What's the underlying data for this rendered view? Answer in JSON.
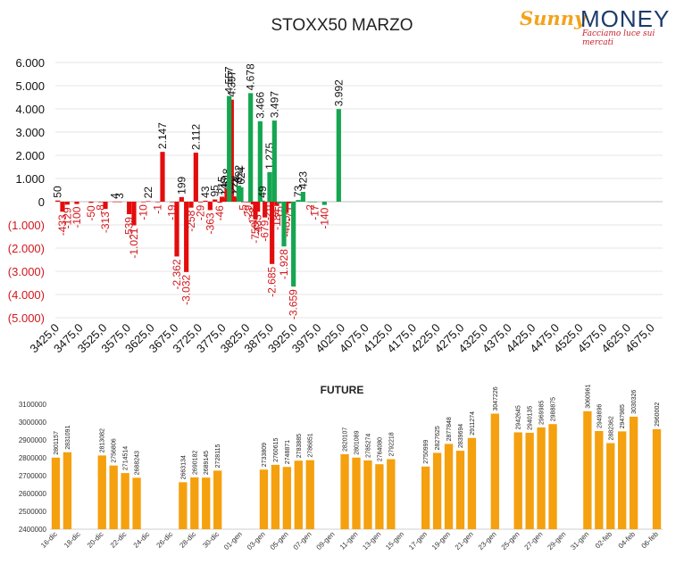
{
  "chart_data": [
    {
      "type": "bar",
      "title": "STOXX50 MARZO",
      "ylim": [
        -5000,
        6000
      ],
      "y_ticks": [
        6000,
        5000,
        4000,
        3000,
        2000,
        1000,
        0,
        -1000,
        -2000,
        -3000,
        -4000,
        -5000
      ],
      "y_tick_labels": [
        "6.000",
        "5.000",
        "4.000",
        "3.000",
        "2.000",
        "1.000",
        "0",
        "(1.000)",
        "(2.000)",
        "(3.000)",
        "(4.000)",
        "(5.000)"
      ],
      "x_tick_labels": [
        "3425,0",
        "3475,0",
        "3525,0",
        "3575,0",
        "3625,0",
        "3675,0",
        "3725,0",
        "3775,0",
        "3825,0",
        "3875,0",
        "3925,0",
        "3975,0",
        "4025,0",
        "4075,0",
        "4125,0",
        "4175,0",
        "4225,0",
        "4275,0",
        "4325,0",
        "4375,0",
        "4425,0",
        "4475,0",
        "4525,0",
        "4575,0",
        "4625,0",
        "4675,0"
      ],
      "x_start": 3425,
      "x_step": 50,
      "x_max": 4700,
      "grid": true,
      "series": [
        {
          "color": "#e30d0d",
          "points": [
            {
              "x": 3430,
              "y": 50,
              "label": "50"
            },
            {
              "x": 3440,
              "y": -433,
              "label": "-433"
            },
            {
              "x": 3450,
              "y": -129,
              "label": "-129"
            },
            {
              "x": 3470,
              "y": -100,
              "label": "-100"
            },
            {
              "x": 3500,
              "y": -50,
              "label": "-50"
            },
            {
              "x": 3520,
              "y": -8,
              "label": "-8"
            },
            {
              "x": 3530,
              "y": -313,
              "label": "-313"
            },
            {
              "x": 3550,
              "y": 4,
              "label": "4"
            },
            {
              "x": 3560,
              "y": 3,
              "label": "3"
            },
            {
              "x": 3580,
              "y": -539,
              "label": "-539"
            },
            {
              "x": 3590,
              "y": -1021,
              "label": "-1.021"
            },
            {
              "x": 3610,
              "y": -10,
              "label": "-10"
            },
            {
              "x": 3620,
              "y": 22,
              "label": "22"
            },
            {
              "x": 3640,
              "y": -1,
              "label": "-1"
            },
            {
              "x": 3650,
              "y": 2147,
              "label": "2.147"
            },
            {
              "x": 3670,
              "y": -19,
              "label": "-19"
            },
            {
              "x": 3680,
              "y": -2362,
              "label": "-2.362"
            },
            {
              "x": 3690,
              "y": 199,
              "label": "199"
            },
            {
              "x": 3700,
              "y": -3032,
              "label": "-3.032"
            },
            {
              "x": 3710,
              "y": -258,
              "label": "-258"
            },
            {
              "x": 3720,
              "y": 2112,
              "label": "2.112"
            },
            {
              "x": 3730,
              "y": -29,
              "label": "-29"
            },
            {
              "x": 3740,
              "y": 43,
              "label": "43"
            },
            {
              "x": 3750,
              "y": -363,
              "label": "-363"
            },
            {
              "x": 3760,
              "y": 95,
              "label": "95"
            },
            {
              "x": 3770,
              "y": -46,
              "label": "-46"
            },
            {
              "x": 3775,
              "y": 215,
              "label": "215"
            },
            {
              "x": 3780,
              "y": 148,
              "label": "148"
            },
            {
              "x": 3785,
              "y": 548,
              "label": "548"
            },
            {
              "x": 3795,
              "y": 4397,
              "label": "4.397"
            },
            {
              "x": 3800,
              "y": 229,
              "label": "229"
            },
            {
              "x": 3805,
              "y": 174,
              "label": "174"
            },
            {
              "x": 3820,
              "y": -5,
              "label": "-5"
            },
            {
              "x": 3830,
              "y": -29,
              "label": "-29"
            },
            {
              "x": 3840,
              "y": -118,
              "label": "-118"
            },
            {
              "x": 3845,
              "y": -759,
              "label": "-759"
            },
            {
              "x": 3850,
              "y": -433,
              "label": "-433"
            },
            {
              "x": 3865,
              "y": -679,
              "label": "-679"
            },
            {
              "x": 3870,
              "y": -26,
              "label": "-26"
            },
            {
              "x": 3880,
              "y": -2685,
              "label": "-2.685"
            },
            {
              "x": 3890,
              "y": -184,
              "label": "-184"
            },
            {
              "x": 3910,
              "y": -485,
              "label": "-485"
            },
            {
              "x": 3915,
              "y": -71,
              "label": "-71"
            }
          ]
        },
        {
          "color": "#14a651",
          "points": [
            {
              "x": 3790,
              "y": 4557,
              "label": "4.557"
            },
            {
              "x": 3810,
              "y": 692,
              "label": "692"
            },
            {
              "x": 3815,
              "y": 624,
              "label": "624"
            },
            {
              "x": 3835,
              "y": 4678,
              "label": "4.678"
            },
            {
              "x": 3855,
              "y": 3466,
              "label": "3.466"
            },
            {
              "x": 3860,
              "y": 49,
              "label": "49"
            },
            {
              "x": 3875,
              "y": 1275,
              "label": "1.275"
            },
            {
              "x": 3885,
              "y": 3497,
              "label": "3.497"
            },
            {
              "x": 3895,
              "y": -75,
              "label": "-75"
            },
            {
              "x": 3905,
              "y": -1928,
              "label": "-1.928"
            },
            {
              "x": 3925,
              "y": -3659,
              "label": "-3.659"
            },
            {
              "x": 3935,
              "y": 73,
              "label": "73"
            },
            {
              "x": 3945,
              "y": 423,
              "label": "423"
            },
            {
              "x": 3960,
              "y": -2,
              "label": "-2"
            },
            {
              "x": 3970,
              "y": -17,
              "label": "-17"
            },
            {
              "x": 3990,
              "y": -140,
              "label": "-140"
            },
            {
              "x": 4020,
              "y": 3992,
              "label": "3.992"
            }
          ]
        }
      ]
    },
    {
      "type": "bar",
      "title": "FUTURE",
      "ylim": [
        2400000,
        3100000
      ],
      "y_ticks": [
        3100000,
        3000000,
        2900000,
        2800000,
        2700000,
        2600000,
        2500000,
        2400000
      ],
      "color": "#f5a00e",
      "slots": [
        "16-dic",
        "17-dic",
        "18-dic",
        "19-dic",
        "20-dic",
        "21-dic",
        "22-dic",
        "23-dic",
        "24-dic",
        "25-dic",
        "26-dic",
        "27-dic",
        "28-dic",
        "29-dic",
        "30-dic",
        "31-dic",
        "01-gen",
        "02-gen",
        "03-gen",
        "04-gen",
        "05-gen",
        "06-gen",
        "07-gen",
        "08-gen",
        "09-gen",
        "10-gen",
        "11-gen",
        "12-gen",
        "13-gen",
        "14-gen",
        "15-gen",
        "16-gen",
        "17-gen",
        "18-gen",
        "19-gen",
        "20-gen",
        "21-gen",
        "22-gen",
        "23-gen",
        "24-gen",
        "25-gen",
        "26-gen",
        "27-gen",
        "28-gen",
        "29-gen",
        "30-gen",
        "31-gen",
        "01-feb",
        "02-feb",
        "03-feb",
        "04-feb",
        "05-feb",
        "06-feb"
      ],
      "tick_labels": [
        "16-dic",
        "18-dic",
        "20-dic",
        "22-dic",
        "24-dic",
        "26-dic",
        "28-dic",
        "30-dic",
        "01-gen",
        "03-gen",
        "05-gen",
        "07-gen",
        "09-gen",
        "11-gen",
        "13-gen",
        "15-gen",
        "17-gen",
        "19-gen",
        "21-gen",
        "23-gen",
        "25-gen",
        "27-gen",
        "29-gen",
        "31-gen",
        "02-feb",
        "04-feb",
        "06-feb"
      ],
      "values": [
        2801157,
        2831091,
        null,
        null,
        2813082,
        2756806,
        2714514,
        2688243,
        null,
        null,
        null,
        2663134,
        2690182,
        2689145,
        2728115,
        null,
        null,
        null,
        2733809,
        2760615,
        2748871,
        2783885,
        2786851,
        null,
        null,
        2820107,
        2801089,
        2785274,
        2764080,
        2792218,
        null,
        null,
        2750999,
        2827625,
        2877848,
        2839694,
        2911274,
        null,
        3047226,
        null,
        2942645,
        2940135,
        2969985,
        2988875,
        null,
        null,
        3060961,
        2949896,
        2882362,
        2947985,
        3030326,
        null,
        2960002
      ]
    }
  ],
  "header": {
    "logo_sunny": "Sunny",
    "logo_money": "MONEY",
    "logo_tagline": "Facciamo luce sui mercati"
  }
}
